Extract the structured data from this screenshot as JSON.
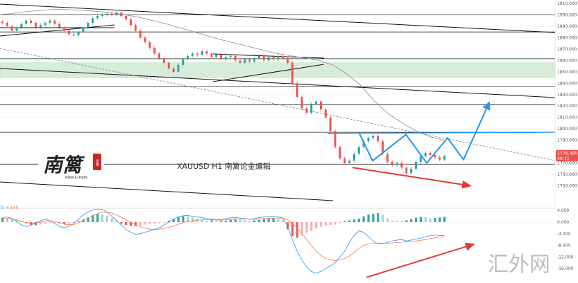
{
  "chart_data": {
    "type": "candlestick",
    "symbol_label": "XAUUSD  H1  南篱论金编辑",
    "price_axis": {
      "ticks": [
        1910,
        1900,
        1890,
        1880,
        1870,
        1860,
        1850,
        1840,
        1830,
        1820,
        1810,
        1800,
        1790,
        1780,
        1770,
        1760,
        1750
      ],
      "tick_labels": [
        "1910.000",
        "1900.000",
        "1890.000",
        "1880.000",
        "1870.000",
        "1860.000",
        "1850.000",
        "1840.000",
        "1830.000",
        "1820.000",
        "1810.000",
        "1800.000",
        "1790.000",
        "1780.000",
        "1770.000",
        "1760.000",
        "1750.000"
      ],
      "range": [
        1747,
        1912
      ]
    },
    "current_price": {
      "value": 1776.485,
      "label": "1776.485",
      "countdown": "08:15",
      "color": "#ef5350"
    },
    "price_path": [
      1893,
      1890,
      1886,
      1889,
      1892,
      1895,
      1893,
      1889,
      1891,
      1893,
      1895,
      1892,
      1889,
      1886,
      1883,
      1882,
      1885,
      1889,
      1893,
      1897,
      1899,
      1900,
      1901,
      1900,
      1902,
      1899,
      1896,
      1891,
      1886,
      1880,
      1876,
      1871,
      1866,
      1862,
      1858,
      1853,
      1850,
      1856,
      1861,
      1864,
      1866,
      1865,
      1868,
      1866,
      1863,
      1865,
      1861,
      1863,
      1864,
      1860,
      1858,
      1861,
      1859,
      1862,
      1864,
      1860,
      1863,
      1861,
      1864,
      1862,
      1858,
      1840,
      1828,
      1818,
      1814,
      1822,
      1824,
      1817,
      1810,
      1798,
      1784,
      1774,
      1770,
      1772,
      1778,
      1784,
      1789,
      1792,
      1794,
      1789,
      1778,
      1771,
      1768,
      1770,
      1766,
      1761,
      1765,
      1771,
      1776,
      1779,
      1777,
      1775,
      1773,
      1776
    ],
    "ma_curve": [
      [
        0,
        1900
      ],
      [
        40,
        1903
      ],
      [
        80,
        1905
      ],
      [
        120,
        1904
      ],
      [
        160,
        1902
      ],
      [
        200,
        1898
      ],
      [
        240,
        1892
      ],
      [
        280,
        1885
      ],
      [
        320,
        1878
      ],
      [
        360,
        1872
      ],
      [
        380,
        1869
      ],
      [
        400,
        1866
      ],
      [
        420,
        1864
      ],
      [
        440,
        1862
      ],
      [
        460,
        1860
      ],
      [
        480,
        1856
      ],
      [
        500,
        1848
      ],
      [
        520,
        1838
      ],
      [
        540,
        1824
      ],
      [
        560,
        1813
      ],
      [
        580,
        1805
      ],
      [
        600,
        1798
      ],
      [
        620,
        1793
      ],
      [
        640,
        1790
      ]
    ],
    "horizontal_levels": [
      1900,
      1885,
      1861.5,
      1837,
      1821,
      1797,
      1769
    ],
    "support_zone": {
      "low": 1845,
      "high": 1858,
      "color": "#c8e6c9"
    },
    "annotations": {
      "blue_projection": [
        [
          517,
          1797
        ],
        [
          537,
          1772
        ],
        [
          585,
          1795
        ],
        [
          615,
          1770
        ],
        [
          645,
          1792
        ],
        [
          668,
          1773
        ],
        [
          705,
          1823
        ]
      ],
      "blue_neckline": [
        [
          472,
          1796
        ],
        [
          800,
          1797
        ]
      ],
      "red_arrow_price": [
        [
          508,
          1766
        ],
        [
          678,
          1750
        ]
      ],
      "red_arrow_macd": [
        [
          528,
          -19
        ],
        [
          683,
          -7.6
        ]
      ]
    },
    "macd": {
      "label_prefix": "0",
      "label_value": "-4.640",
      "y_ticks": [
        4,
        0,
        -4,
        -8,
        -12,
        -16
      ],
      "y_labels": [
        "4.000",
        "0.000",
        "-4.000",
        "-8.000",
        "-12.000",
        "-16.000"
      ],
      "range": [
        -19.5,
        7
      ],
      "histogram": [
        1.4,
        1.2,
        1.0,
        0.6,
        0.3,
        -0.4,
        -0.9,
        -1.1,
        -0.8,
        -0.5,
        -0.3,
        -0.2,
        -0.4,
        -0.6,
        -0.5,
        -0.2,
        0.3,
        0.9,
        1.6,
        2.4,
        2.8,
        2.6,
        2.2,
        1.3,
        0.4,
        -0.5,
        -1.0,
        -1.3,
        -1.4,
        -1.2,
        -0.8,
        -0.6,
        -0.5,
        -0.3,
        -0.2,
        0.5,
        1.2,
        1.8,
        2.1,
        2.0,
        1.6,
        1.1,
        0.8,
        0.5,
        0.6,
        0.3,
        0.4,
        0.5,
        0.8,
        1.0,
        0.9,
        0.7,
        0.4,
        0.6,
        0.8,
        1.0,
        1.2,
        1.3,
        1.0,
        0.7,
        -2.5,
        -4.8,
        -5.4,
        -4.5,
        -3.6,
        -3.0,
        -2.2,
        -1.6,
        -1.2,
        -1.0,
        -0.8,
        -0.4,
        0.4,
        0.6,
        0.9,
        1.2,
        2.0,
        2.6,
        2.9,
        3.1,
        2.5,
        1.3,
        0.5,
        0.4,
        0.3,
        0.6,
        1.0,
        1.5,
        1.8,
        1.7,
        1.3,
        1.4,
        1.6,
        1.8
      ],
      "macd_line": [
        1.5,
        1.8,
        1.2,
        0.2,
        -1.0,
        -1.5,
        -1.0,
        -0.3,
        0.5,
        1.0,
        0.5,
        -0.5,
        -1.5,
        -2.0,
        -1.5,
        -0.5,
        1.0,
        2.5,
        3.5,
        4.2,
        4.5,
        4.3,
        3.5,
        2.0,
        0.5,
        -1.0,
        -2.5,
        -3.5,
        -4.2,
        -4.0,
        -3.5,
        -3.0,
        -2.5,
        -2.0,
        -1.0,
        0.0,
        1.0,
        1.8,
        2.2,
        2.3,
        2.0,
        1.8,
        1.5,
        1.2,
        1.0,
        0.8,
        0.9,
        1.2,
        1.5,
        1.6,
        1.4,
        1.2,
        1.0,
        1.2,
        1.5,
        1.8,
        2.0,
        2.0,
        1.8,
        1.5,
        -1.5,
        -6.0,
        -10.0,
        -13.0,
        -15.5,
        -17.0,
        -17.5,
        -17.0,
        -16.0,
        -15.0,
        -14.0,
        -12.0,
        -10.0,
        -7.0,
        -4.5,
        -3.0,
        -3.5,
        -5.0,
        -6.5,
        -7.5,
        -7.5,
        -7.0,
        -6.5,
        -6.2,
        -6.0,
        -6.5,
        -6.2,
        -5.8,
        -5.5,
        -5.0,
        -4.7,
        -4.5,
        -4.6,
        -4.6
      ],
      "signal_line": [
        1.0,
        1.3,
        1.2,
        0.8,
        0.3,
        -0.2,
        -0.4,
        -0.3,
        0.0,
        0.4,
        0.5,
        0.3,
        -0.2,
        -0.7,
        -0.9,
        -0.8,
        -0.3,
        0.5,
        1.4,
        2.2,
        2.9,
        3.3,
        3.4,
        3.1,
        2.5,
        1.7,
        0.8,
        0.0,
        -0.9,
        -1.6,
        -2.1,
        -2.4,
        -2.5,
        -2.4,
        -2.2,
        -1.8,
        -1.3,
        -0.7,
        -0.2,
        0.2,
        0.5,
        0.7,
        0.8,
        0.8,
        0.8,
        0.7,
        0.7,
        0.8,
        0.9,
        1.0,
        1.1,
        1.1,
        1.0,
        1.0,
        1.1,
        1.2,
        1.3,
        1.4,
        1.4,
        1.4,
        0.8,
        -0.5,
        -2.0,
        -4.0,
        -6.0,
        -8.0,
        -10.0,
        -11.5,
        -12.5,
        -13.0,
        -13.2,
        -13.0,
        -12.5,
        -11.6,
        -10.4,
        -9.0,
        -8.0,
        -7.5,
        -7.2,
        -7.2,
        -7.3,
        -7.3,
        -7.2,
        -7.0,
        -6.9,
        -6.8,
        -6.7,
        -6.5,
        -6.3,
        -6.0,
        -5.7,
        -5.4,
        -5.2,
        -5.0
      ]
    }
  },
  "brand": {
    "logo_main": "南篱",
    "logo_sub": "NANLILUNJIN",
    "seal": "论金",
    "watermark": "汇外网"
  }
}
